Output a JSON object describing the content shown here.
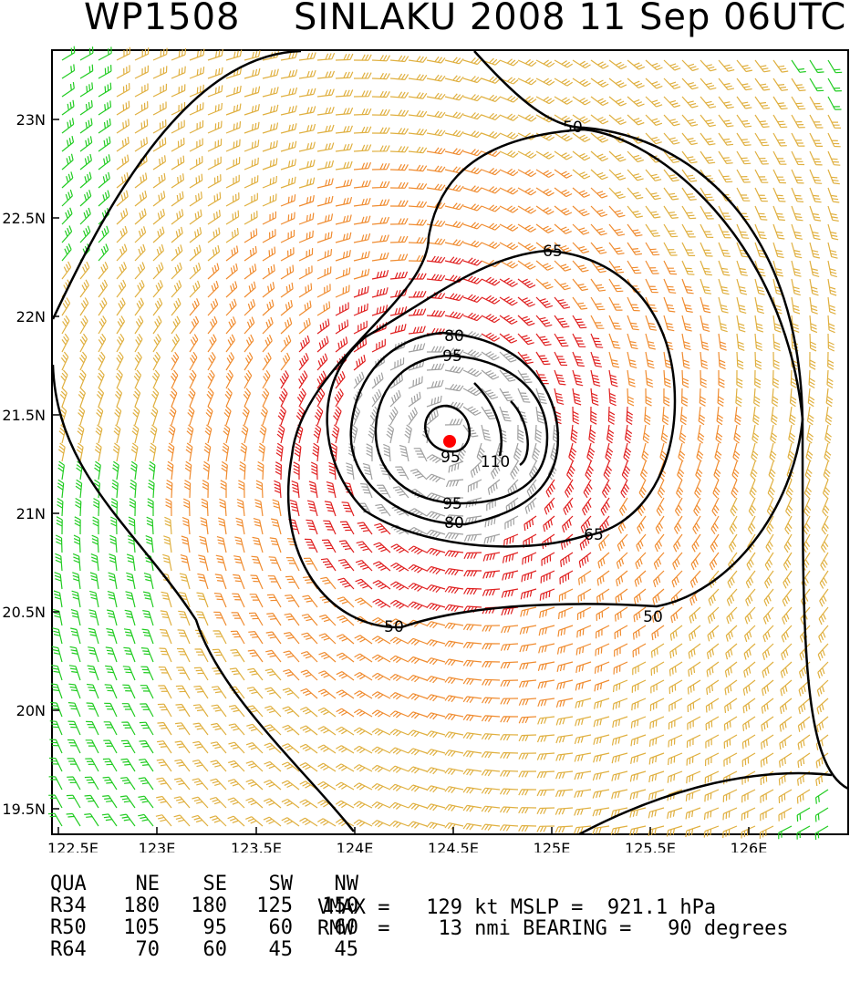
{
  "title": {
    "storm_id": "WP1508",
    "storm_info": "SINLAKU 2008 11 Sep 06UTC"
  },
  "map": {
    "lon_ticks": [
      "122.5E",
      "123E",
      "123.5E",
      "124E",
      "124.5E",
      "125E",
      "125.5E",
      "126E"
    ],
    "lat_ticks": [
      "23N",
      "22.5N",
      "22N",
      "21.5N",
      "21N",
      "20.5N",
      "20N",
      "19.5N"
    ],
    "contour_labels": [
      "50",
      "50",
      "50",
      "65",
      "65",
      "80",
      "80",
      "95",
      "95",
      "95",
      "110"
    ],
    "center_marker_color": "#ff0000",
    "wind_colors": {
      "lt34": "#22cc22",
      "34to50": "#e0b040",
      "50to64": "#f08c30",
      "64to96": "#e02020",
      "gt96": "#a0a0a0"
    }
  },
  "wind_radii": {
    "headers": [
      "QUA",
      "NE",
      "SE",
      "SW",
      "NW"
    ],
    "rows": [
      [
        "R34",
        "180",
        "180",
        "125",
        "150"
      ],
      [
        "R50",
        "105",
        "95",
        "60",
        "60"
      ],
      [
        "R64",
        "70",
        "60",
        "45",
        "45"
      ]
    ]
  },
  "stats": {
    "line1": "VMAX =   129 kt MSLP =  921.1 hPa",
    "line2": "RMW  =    13 nmi BEARING =   90 degrees"
  }
}
